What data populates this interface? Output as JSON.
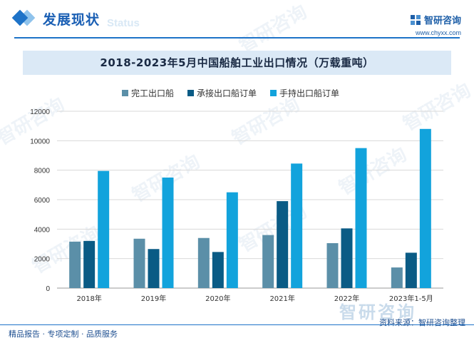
{
  "header": {
    "section_title": "发展现状",
    "status_watermark": "Status",
    "brand_name": "智研咨询",
    "brand_url": "www.chyxx.com"
  },
  "watermark": "智研咨询",
  "chart_data": {
    "type": "bar",
    "title": "2018-2023年5月中国船舶工业出口情况（万载重吨）",
    "categories": [
      "2018年",
      "2019年",
      "2020年",
      "2021年",
      "2022年",
      "2023年1-5月"
    ],
    "series": [
      {
        "name": "完工出口船",
        "color": "#5b8fa8",
        "values": [
          3150,
          3350,
          3400,
          3600,
          3050,
          1400
        ]
      },
      {
        "name": "承接出口船订单",
        "color": "#0a5b85",
        "values": [
          3200,
          2650,
          2450,
          5900,
          4050,
          2400
        ]
      },
      {
        "name": "手持出口船订单",
        "color": "#12a3dc",
        "values": [
          7950,
          7500,
          6500,
          8450,
          9500,
          10800
        ]
      }
    ],
    "ylim": [
      0,
      12000
    ],
    "yticks": [
      "0",
      "2000",
      "4000",
      "6000",
      "8000",
      "10000",
      "12000"
    ],
    "grid": true,
    "legend_position": "top-center"
  },
  "footer": {
    "left": "精品报告 · 专项定制 · 品质服务",
    "right": "资料来源：智研咨询整理"
  }
}
